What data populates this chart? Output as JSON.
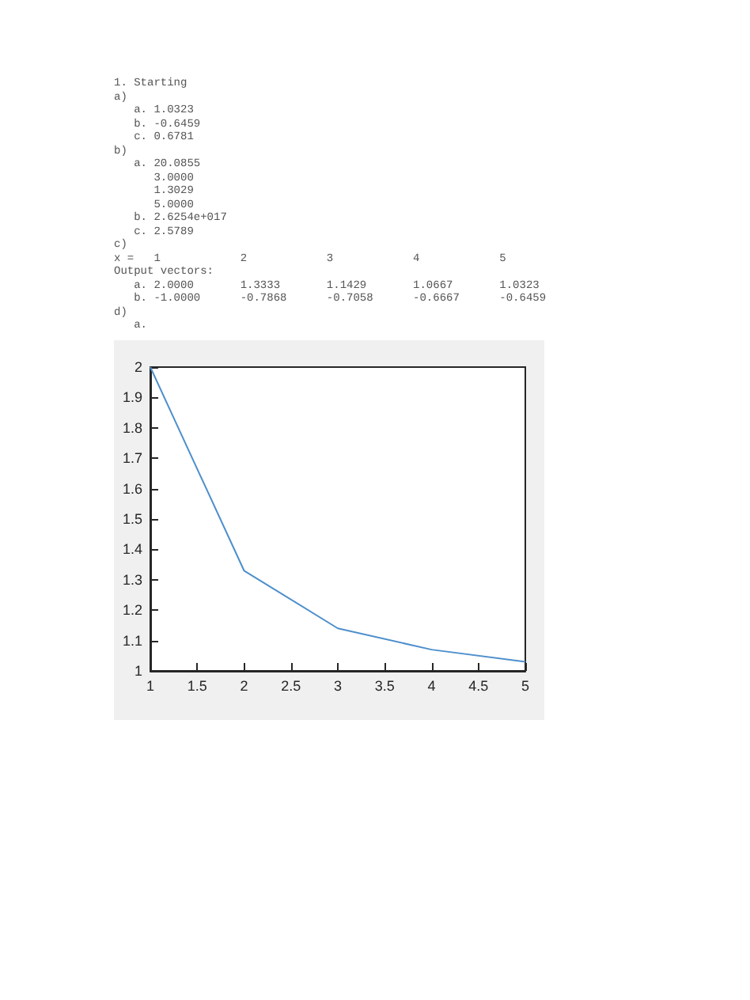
{
  "chart_data": {
    "type": "line",
    "annotations": [
      "1. Starting",
      "a)",
      "   a. 1.0323",
      "   b. -0.6459",
      "   c. 0.6781",
      "b)",
      "   a. 20.0855",
      "      3.0000",
      "      1.3029",
      "      5.0000",
      "   b. 2.6254e+017",
      "   c. 2.5789",
      "c)",
      "x =   1            2            3            4            5",
      "Output vectors:",
      "   a. 2.0000       1.3333       1.1429       1.0667       1.0323",
      "   b. -1.0000      -0.7868      -0.7058      -0.6667      -0.6459",
      "d)",
      "   a."
    ],
    "x": [
      1,
      2,
      3,
      4,
      5
    ],
    "series": [
      {
        "color": "#4d8fcc",
        "values": [
          2,
          1.33,
          1.14,
          1.07,
          1.03
        ]
      }
    ],
    "xlim": [
      1,
      5
    ],
    "xticks": [
      1,
      1.5,
      2,
      2.5,
      3,
      3.5,
      4,
      4.5,
      5
    ],
    "ylim": [
      1,
      2
    ],
    "yticks": [
      1,
      1.1,
      1.2,
      1.3,
      1.4,
      1.5,
      1.6,
      1.7,
      1.8,
      1.9,
      2
    ]
  }
}
